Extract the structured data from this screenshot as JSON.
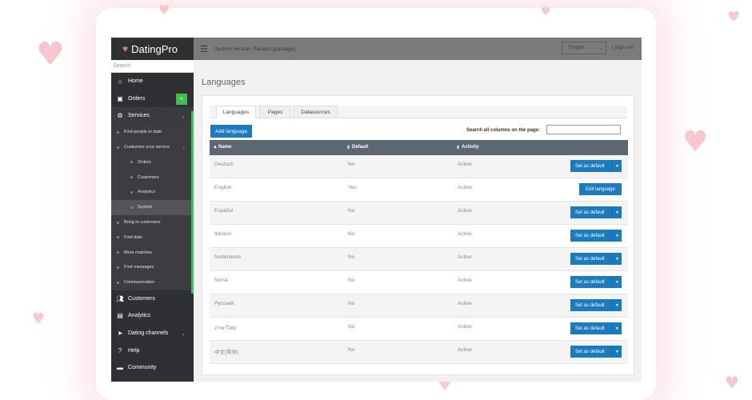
{
  "brand": {
    "name": "DatingPro"
  },
  "sidebar": {
    "search_placeholder": "Search",
    "items": [
      {
        "label": "Home",
        "icon": "home-icon"
      },
      {
        "label": "Orders",
        "icon": "orders-icon",
        "badge": "«"
      },
      {
        "label": "Services",
        "icon": "gear-icon"
      }
    ],
    "services_sub": [
      {
        "label": "Find people to date"
      },
      {
        "label": "Customize your service"
      }
    ],
    "customize_sub": [
      {
        "label": "Orders"
      },
      {
        "label": "Customers"
      },
      {
        "label": "Analytics"
      },
      {
        "label": "System"
      }
    ],
    "services_more": [
      {
        "label": "Bring in customers"
      },
      {
        "label": "Find date"
      },
      {
        "label": "More matches"
      },
      {
        "label": "First messages"
      },
      {
        "label": "Communication"
      }
    ],
    "bottom_items": [
      {
        "label": "Customers",
        "icon": "users-icon"
      },
      {
        "label": "Analytics",
        "icon": "chart-icon"
      },
      {
        "label": "Dating channels",
        "icon": "channels-icon"
      },
      {
        "label": "Help",
        "icon": "help-icon"
      },
      {
        "label": "Community",
        "icon": "chat-icon"
      }
    ]
  },
  "topbar": {
    "system_version": "System version: Passion [package]",
    "language": "English",
    "signout": "| Sign out"
  },
  "main": {
    "title": "Languages",
    "tabs": [
      "Languages",
      "Pages",
      "Datasources"
    ],
    "add_button": "Add language",
    "search_label": "Search all columns on the page:",
    "columns": [
      "Name",
      "Default",
      "Activity"
    ],
    "column_icons": [
      "▲",
      "⇕",
      "⇕"
    ],
    "rows": [
      {
        "name": "Deutsch",
        "default": "No",
        "activity": "Active",
        "action": "Set as default"
      },
      {
        "name": "English",
        "default": "Yes",
        "activity": "Active",
        "action": "Edit language"
      },
      {
        "name": "Español",
        "default": "No",
        "activity": "Active",
        "action": "Set as default"
      },
      {
        "name": "Italiano",
        "default": "No",
        "activity": "Active",
        "action": "Set as default"
      },
      {
        "name": "Nederlands",
        "default": "No",
        "activity": "Active",
        "action": "Set as default"
      },
      {
        "name": "Norsk",
        "default": "No",
        "activity": "Active",
        "action": "Set as default"
      },
      {
        "name": "Русский",
        "default": "No",
        "activity": "Active",
        "action": "Set as default"
      },
      {
        "name": "ภาษาไทย",
        "default": "No",
        "activity": "Active",
        "action": "Set as default"
      },
      {
        "name": "中文(简体)",
        "default": "No",
        "activity": "Active",
        "action": "Set as default"
      }
    ]
  },
  "colors": {
    "accent": "#1a7bc0",
    "sidebar": "#2f3033",
    "active_bar": "#3ec04a",
    "header": "#5d6771"
  }
}
